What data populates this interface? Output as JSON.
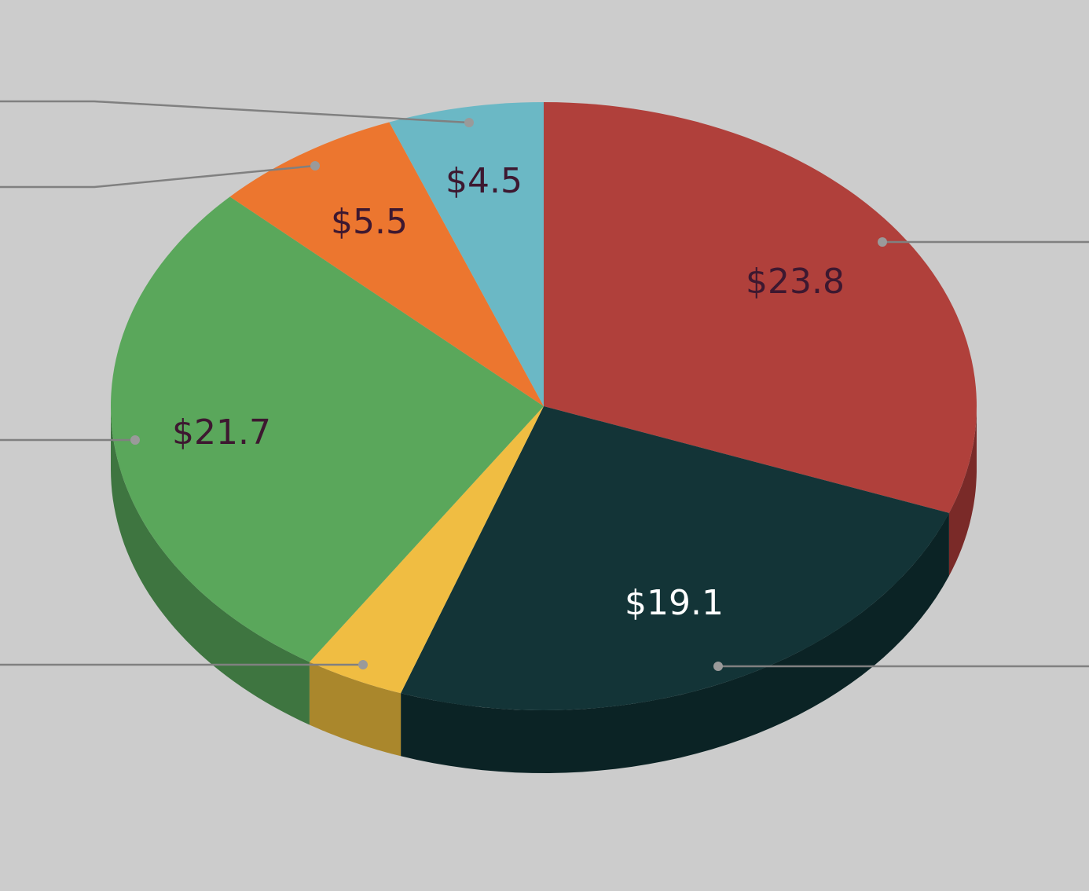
{
  "chart_data": {
    "type": "pie",
    "style": "3d",
    "title": "",
    "start_angle_deg": 0,
    "direction": "clockwise",
    "slices": [
      {
        "label": "$23.8",
        "value": 23.8,
        "color": "#b0403b",
        "side_color": "#7a2a28",
        "text_color": "#3d1830"
      },
      {
        "label": "$19.1",
        "value": 19.1,
        "color": "#133437",
        "side_color": "#0b2325",
        "text_color": "#ffffff"
      },
      {
        "label": null,
        "value": 2.9,
        "color": "#f0bd42",
        "side_color": "#aa872c",
        "text_color": "#3d1830"
      },
      {
        "label": "$21.7",
        "value": 21.7,
        "color": "#5aa75b",
        "side_color": "#3e7540",
        "text_color": "#3d1830"
      },
      {
        "label": "$5.5",
        "value": 5.5,
        "color": "#ec762f",
        "side_color": "#a8531f",
        "text_color": "#3d1830"
      },
      {
        "label": "$4.5",
        "value": 4.5,
        "color": "#6bb8c5",
        "side_color": "#4b8490",
        "text_color": "#3d1830"
      }
    ],
    "legend": "none",
    "leader_color": "#808080",
    "background": "#cccccc"
  }
}
